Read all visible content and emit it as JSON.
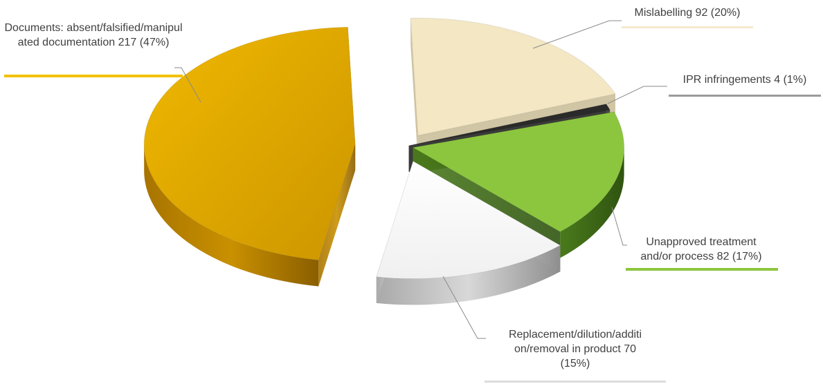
{
  "chart_data": {
    "type": "pie",
    "style": "3d-exploded",
    "title": "",
    "slices": [
      {
        "label": "Mislabelling 92 (20%)",
        "category": "Mislabelling",
        "value": 92,
        "percent": 20,
        "color": "#f3e7c4"
      },
      {
        "label": "IPR infringements 4 (1%)",
        "category": "IPR infringements",
        "value": 4,
        "percent": 1,
        "color": "#2a2a2a"
      },
      {
        "label": "Unapproved treatment and/or process 82 (17%)",
        "category": "Unapproved treatment and/or process",
        "value": 82,
        "percent": 17,
        "color": "#8cc63f"
      },
      {
        "label": "Replacement/dilution/addition/removal in product 70 (15%)",
        "category": "Replacement/dilution/addition/removal in product",
        "value": 70,
        "percent": 15,
        "color": "#f4f4f4"
      },
      {
        "label": "Documents: absent/falsified/manipulated documentation 217 (47%)",
        "category": "Documents: absent/falsified/manipulated documentation",
        "value": 217,
        "percent": 47,
        "color": "#e0a800"
      }
    ]
  },
  "labels": {
    "documents": "Documents: absent/falsified/manipulated documentation 217 (47%)",
    "mislabelling": "Mislabelling 92 (20%)",
    "ipr": "IPR infringements 4 (1%)",
    "unapproved_line1": "Unapproved treatment",
    "unapproved_line2": "and/or process 82 (17%)",
    "replacement_line1": "Replacement/dilution/additi",
    "replacement_line2": "on/removal in product 70",
    "replacement_line3": "(15%)"
  }
}
